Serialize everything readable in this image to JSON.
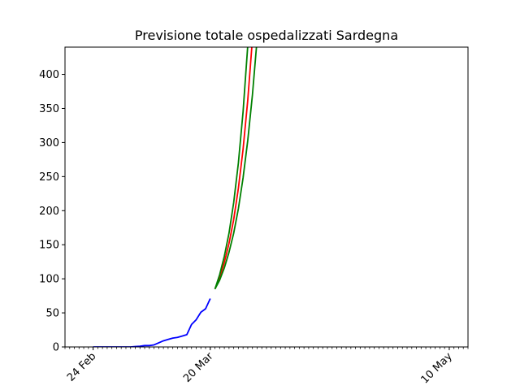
{
  "chart_data": {
    "type": "line",
    "title": "Previsione totale ospedalizzati Sardegna",
    "xlabel": "",
    "ylabel": "",
    "x_axis": {
      "kind": "date",
      "min": "2020-02-18",
      "max": "2020-05-14",
      "major_ticks": [
        {
          "date": "2020-02-24",
          "label": "24 Feb"
        },
        {
          "date": "2020-03-20",
          "label": "20 Mar"
        },
        {
          "date": "2020-05-10",
          "label": "10 May"
        }
      ],
      "minor_ticks_daily": true
    },
    "ylim": [
      0,
      440
    ],
    "y_ticks": [
      0,
      50,
      100,
      150,
      200,
      250,
      300,
      350,
      400
    ],
    "grid": false,
    "series": [
      {
        "color": "#0000ff",
        "points": [
          [
            "2020-02-24",
            0
          ],
          [
            "2020-02-25",
            0
          ],
          [
            "2020-02-26",
            0
          ],
          [
            "2020-02-27",
            0
          ],
          [
            "2020-02-28",
            0
          ],
          [
            "2020-02-29",
            0
          ],
          [
            "2020-03-01",
            0
          ],
          [
            "2020-03-02",
            0
          ],
          [
            "2020-03-03",
            0
          ],
          [
            "2020-03-04",
            0.5
          ],
          [
            "2020-03-05",
            1
          ],
          [
            "2020-03-06",
            2
          ],
          [
            "2020-03-07",
            2
          ],
          [
            "2020-03-08",
            3
          ],
          [
            "2020-03-09",
            6
          ],
          [
            "2020-03-10",
            9
          ],
          [
            "2020-03-11",
            11
          ],
          [
            "2020-03-12",
            13
          ],
          [
            "2020-03-13",
            14
          ],
          [
            "2020-03-14",
            16
          ],
          [
            "2020-03-15",
            18
          ],
          [
            "2020-03-16",
            33
          ],
          [
            "2020-03-17",
            40
          ],
          [
            "2020-03-18",
            51
          ],
          [
            "2020-03-19",
            56
          ],
          [
            "2020-03-20",
            71
          ]
        ]
      },
      {
        "color": "#ff0000",
        "points": [
          [
            "2020-03-21",
            85
          ],
          [
            "2020-03-22",
            102
          ],
          [
            "2020-03-23",
            124
          ],
          [
            "2020-03-24",
            152
          ],
          [
            "2020-03-25",
            187
          ],
          [
            "2020-03-26",
            233
          ],
          [
            "2020-03-27",
            290
          ],
          [
            "2020-03-28",
            362
          ],
          [
            "2020-03-29",
            452
          ]
        ]
      },
      {
        "color": "#008000",
        "points": [
          [
            "2020-03-21",
            85
          ],
          [
            "2020-03-22",
            106
          ],
          [
            "2020-03-23",
            133
          ],
          [
            "2020-03-24",
            167
          ],
          [
            "2020-03-25",
            212
          ],
          [
            "2020-03-26",
            270
          ],
          [
            "2020-03-27",
            345
          ],
          [
            "2020-03-28",
            442
          ]
        ]
      },
      {
        "color": "#008000",
        "points": [
          [
            "2020-03-21",
            85
          ],
          [
            "2020-03-22",
            98
          ],
          [
            "2020-03-23",
            116
          ],
          [
            "2020-03-24",
            139
          ],
          [
            "2020-03-25",
            167
          ],
          [
            "2020-03-26",
            203
          ],
          [
            "2020-03-27",
            248
          ],
          [
            "2020-03-28",
            303
          ],
          [
            "2020-03-29",
            370
          ],
          [
            "2020-03-30",
            452
          ]
        ]
      }
    ]
  }
}
